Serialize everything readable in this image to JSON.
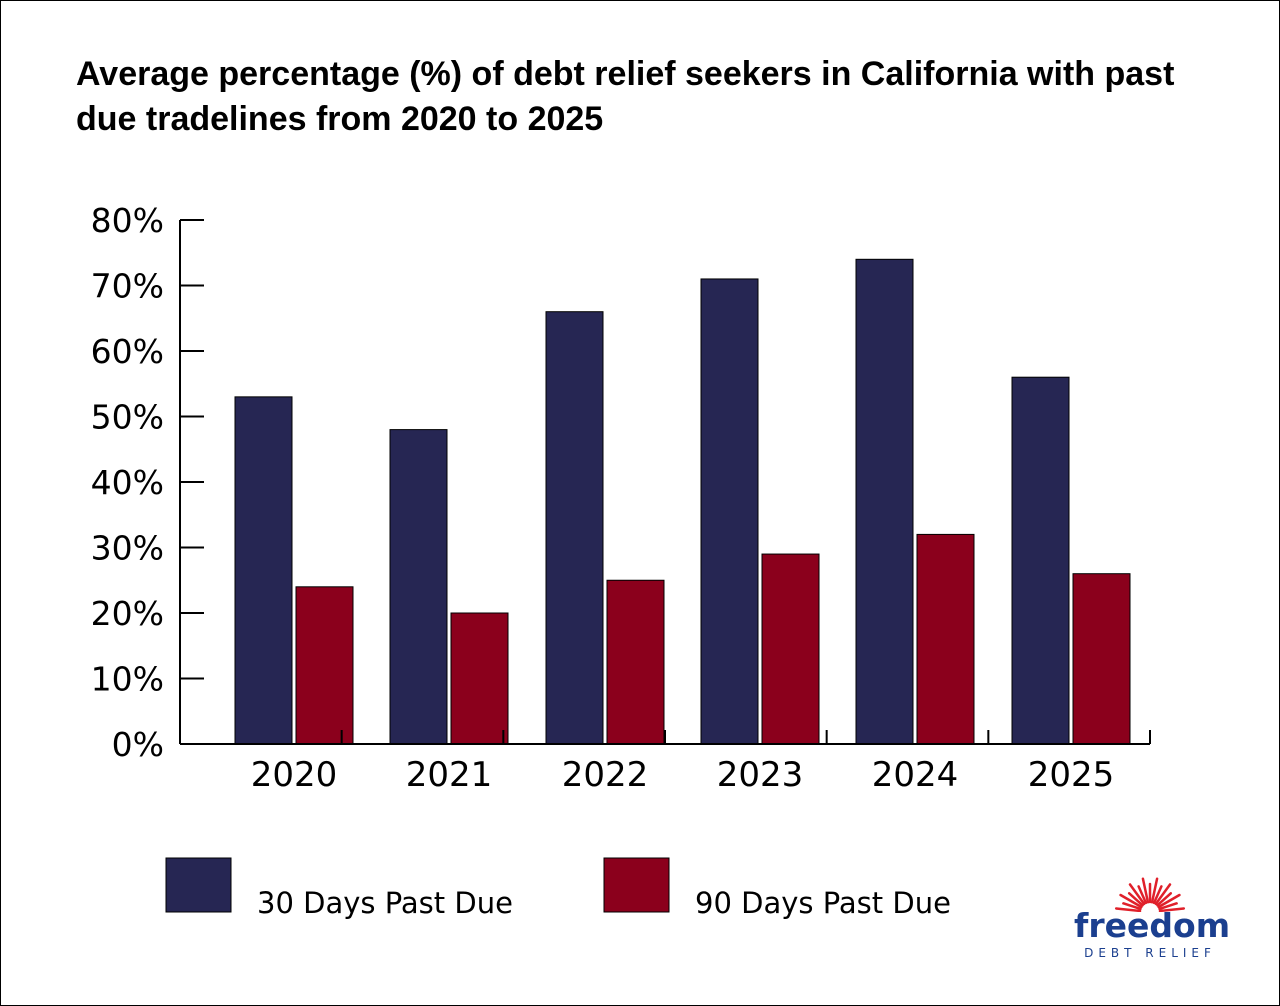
{
  "title": "Average percentage (%) of debt relief seekers in California with past due tradelines from 2020 to 2025",
  "chart_data": {
    "type": "bar",
    "title": "Average percentage (%) of debt relief seekers in California with past due tradelines from 2020 to 2025",
    "categories": [
      "2020",
      "2021",
      "2022",
      "2023",
      "2024",
      "2025"
    ],
    "series": [
      {
        "name": "30 Days Past Due",
        "color": "#262653",
        "values": [
          53,
          48,
          66,
          71,
          74,
          56
        ]
      },
      {
        "name": "90 Days Past Due",
        "color": "#8b001c",
        "values": [
          24,
          20,
          25,
          29,
          32,
          26
        ]
      }
    ],
    "y_ticks": [
      "0%",
      "10%",
      "20%",
      "30%",
      "40%",
      "50%",
      "60%",
      "70%",
      "80%"
    ],
    "ylim": [
      0,
      80
    ],
    "xlabel": "",
    "ylabel": "",
    "grid": false,
    "legend_position": "bottom"
  },
  "logo": {
    "word": "freedom",
    "sub": "DEBT RELIEF",
    "color": "#1b3f8f",
    "sun_color": "#e0202a"
  }
}
